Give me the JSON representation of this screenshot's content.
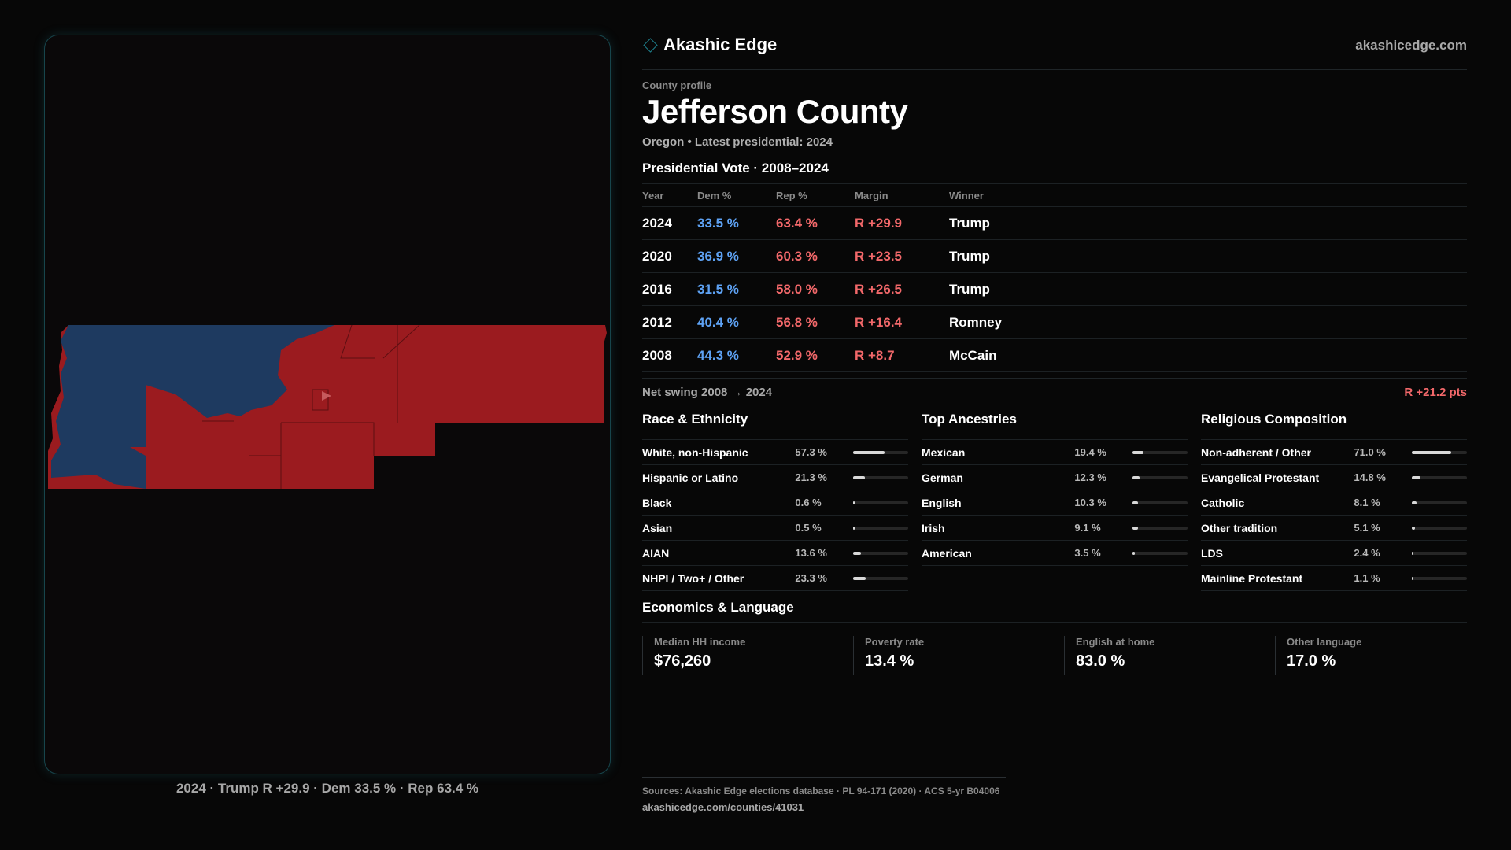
{
  "brand": {
    "name": "Akashic Edge",
    "site": "akashicedge.com",
    "icon": "diamond-icon"
  },
  "map": {
    "caption": "2024 · Trump R +29.9 · Dem 33.5 % · Rep 63.4 %",
    "colors": {
      "dem": "#1e3a60",
      "rep": "#9b1b1f"
    }
  },
  "profile": {
    "label": "County profile",
    "name": "Jefferson County",
    "subline": "Oregon • Latest presidential: 2024"
  },
  "vote": {
    "title": "Presidential Vote · 2008–2024",
    "headers": {
      "year": "Year",
      "dem": "Dem %",
      "rep": "Rep %",
      "margin": "Margin",
      "winner": "Winner"
    },
    "rows": [
      {
        "year": "2024",
        "dem": "33.5 %",
        "rep": "63.4 %",
        "margin": "R +29.9",
        "winner": "Trump"
      },
      {
        "year": "2020",
        "dem": "36.9 %",
        "rep": "60.3 %",
        "margin": "R +23.5",
        "winner": "Trump"
      },
      {
        "year": "2016",
        "dem": "31.5 %",
        "rep": "58.0 %",
        "margin": "R +26.5",
        "winner": "Trump"
      },
      {
        "year": "2012",
        "dem": "40.4 %",
        "rep": "56.8 %",
        "margin": "R +16.4",
        "winner": "Romney"
      },
      {
        "year": "2008",
        "dem": "44.3 %",
        "rep": "52.9 %",
        "margin": "R +8.7",
        "winner": "McCain"
      }
    ],
    "swing_label": "Net swing 2008 → 2024",
    "swing_value": "R +21.2 pts"
  },
  "race": {
    "title": "Race & Ethnicity",
    "items": [
      {
        "label": "White, non-Hispanic",
        "value": "57.3 %",
        "pct": 57.3
      },
      {
        "label": "Hispanic or Latino",
        "value": "21.3 %",
        "pct": 21.3
      },
      {
        "label": "Black",
        "value": "0.6 %",
        "pct": 0.6
      },
      {
        "label": "Asian",
        "value": "0.5 %",
        "pct": 0.5
      },
      {
        "label": "AIAN",
        "value": "13.6 %",
        "pct": 13.6
      },
      {
        "label": "NHPI / Two+ / Other",
        "value": "23.3 %",
        "pct": 23.3
      }
    ]
  },
  "ancestry": {
    "title": "Top Ancestries",
    "items": [
      {
        "label": "Mexican",
        "value": "19.4 %",
        "pct": 19.4
      },
      {
        "label": "German",
        "value": "12.3 %",
        "pct": 12.3
      },
      {
        "label": "English",
        "value": "10.3 %",
        "pct": 10.3
      },
      {
        "label": "Irish",
        "value": "9.1 %",
        "pct": 9.1
      },
      {
        "label": "American",
        "value": "3.5 %",
        "pct": 3.5
      }
    ]
  },
  "religion": {
    "title": "Religious Composition",
    "items": [
      {
        "label": "Non-adherent / Other",
        "value": "71.0 %",
        "pct": 71.0
      },
      {
        "label": "Evangelical Protestant",
        "value": "14.8 %",
        "pct": 14.8
      },
      {
        "label": "Catholic",
        "value": "8.1 %",
        "pct": 8.1
      },
      {
        "label": "Other tradition",
        "value": "5.1 %",
        "pct": 5.1
      },
      {
        "label": "LDS",
        "value": "2.4 %",
        "pct": 2.4
      },
      {
        "label": "Mainline Protestant",
        "value": "1.1 %",
        "pct": 1.1
      }
    ]
  },
  "econ": {
    "title": "Economics & Language",
    "items": [
      {
        "label": "Median HH income",
        "value": "$76,260"
      },
      {
        "label": "Poverty rate",
        "value": "13.4 %"
      },
      {
        "label": "English at home",
        "value": "83.0 %"
      },
      {
        "label": "Other language",
        "value": "17.0 %"
      }
    ]
  },
  "footer": {
    "sources": "Sources: Akashic Edge elections database · PL 94-171 (2020) · ACS 5-yr B04006",
    "url": "akashicedge.com/counties/41031"
  }
}
